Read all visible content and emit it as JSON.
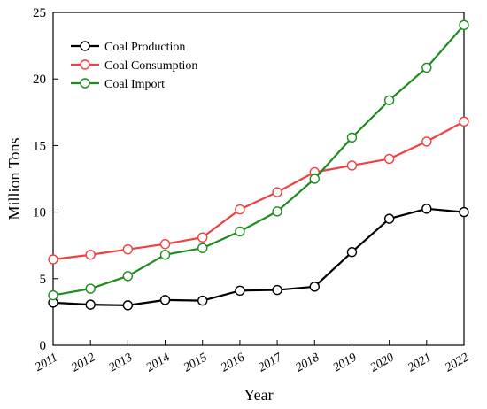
{
  "chart_data": {
    "type": "line",
    "xlabel": "Year",
    "ylabel": "Million Tons",
    "x": [
      2011,
      2012,
      2013,
      2014,
      2015,
      2016,
      2017,
      2018,
      2019,
      2020,
      2021,
      2022
    ],
    "ylim": [
      0,
      25
    ],
    "yticks": [
      0,
      5,
      10,
      15,
      20,
      25
    ],
    "grid": false,
    "legend": "top-left",
    "series": [
      {
        "name": "Coal Production",
        "color": "#000000",
        "values": [
          3.2,
          3.05,
          3.0,
          3.4,
          3.35,
          4.1,
          4.15,
          4.4,
          7.0,
          9.5,
          10.25,
          10.0
        ]
      },
      {
        "name": "Coal Consumption",
        "color": "#f04040",
        "values": [
          6.45,
          6.8,
          7.2,
          7.6,
          8.1,
          10.2,
          11.5,
          13.0,
          13.5,
          14.0,
          15.3,
          16.8
        ]
      },
      {
        "name": "Coal Import",
        "color": "#1e8c1e",
        "values": [
          3.75,
          4.25,
          5.2,
          6.8,
          7.3,
          8.55,
          10.05,
          12.5,
          15.6,
          18.4,
          20.85,
          24.05
        ]
      }
    ]
  }
}
